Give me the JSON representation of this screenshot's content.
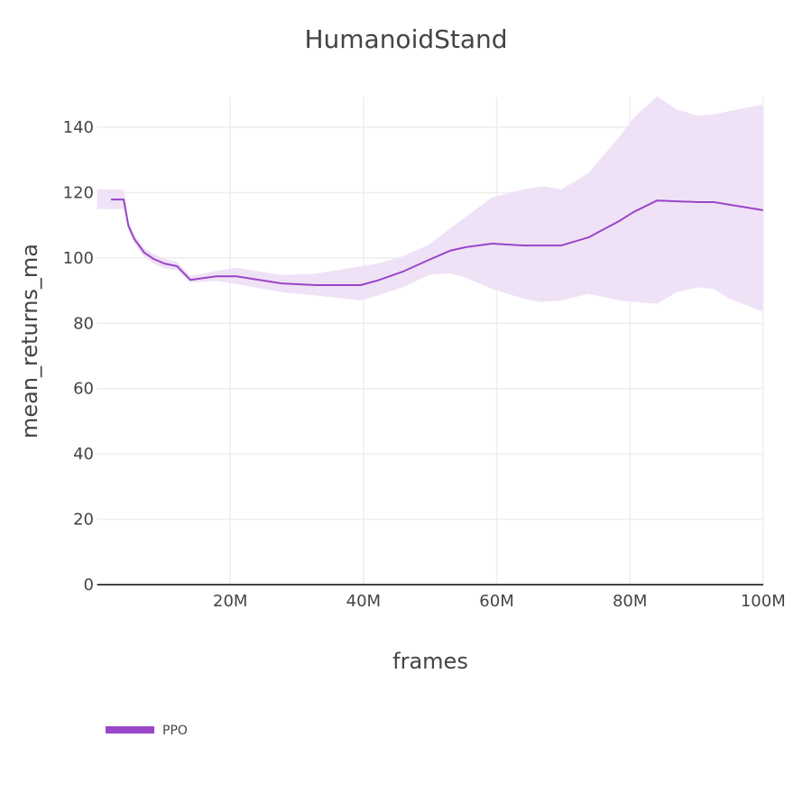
{
  "chart_data": {
    "type": "line",
    "title": "HumanoidStand",
    "xlabel": "frames",
    "ylabel": "mean_returns_ma",
    "xlim": [
      0,
      100000000
    ],
    "ylim": [
      0,
      150
    ],
    "x_ticks": [
      20000000,
      40000000,
      60000000,
      80000000,
      100000000
    ],
    "x_tick_labels": [
      "20M",
      "40M",
      "60M",
      "80M",
      "100M"
    ],
    "y_ticks": [
      0,
      20,
      40,
      60,
      80,
      100,
      120,
      140
    ],
    "y_tick_labels": [
      "0",
      "20",
      "40",
      "60",
      "80",
      "100",
      "120",
      "140"
    ],
    "grid": true,
    "legend_position": "bottom-left",
    "series": [
      {
        "name": "PPO",
        "color": "#9b45c9",
        "band_color": "#efe2f6",
        "x_M": [
          2.1,
          4.0,
          4.7,
          5.6,
          7.1,
          8.5,
          10.1,
          12.0,
          14.0,
          17.9,
          20.9,
          27.7,
          32.8,
          39.6,
          42.1,
          45.9,
          49.8,
          53.0,
          55.3,
          59.3,
          64.1,
          66.8,
          69.7,
          73.8,
          78.4,
          80.6,
          84.1,
          90.2,
          92.6,
          100.0
        ],
        "mean": [
          117.9,
          117.9,
          109.9,
          105.8,
          101.6,
          99.7,
          98.3,
          97.5,
          93.3,
          94.4,
          94.4,
          92.2,
          91.7,
          91.7,
          93.1,
          95.8,
          99.4,
          102.2,
          103.3,
          104.4,
          103.8,
          103.8,
          103.8,
          106.3,
          111.3,
          114.1,
          117.6,
          117.1,
          117.1,
          114.6
        ],
        "band_x_M": [
          0.0,
          4.0,
          4.7,
          5.6,
          7.1,
          8.5,
          10.1,
          12.0,
          14.0,
          17.9,
          20.9,
          27.7,
          32.8,
          39.6,
          42.1,
          45.9,
          49.8,
          53.0,
          55.3,
          59.3,
          64.1,
          66.8,
          69.7,
          73.8,
          78.4,
          80.6,
          84.1,
          87.0,
          90.2,
          92.6,
          95.0,
          100.0
        ],
        "upper": [
          121.0,
          121.0,
          111.5,
          107.0,
          103.0,
          101.2,
          99.8,
          98.8,
          94.5,
          96.0,
          97.0,
          94.8,
          95.2,
          97.5,
          98.3,
          100.5,
          104.0,
          109.0,
          112.5,
          118.5,
          121.0,
          122.0,
          121.0,
          126.0,
          137.0,
          143.0,
          149.5,
          145.5,
          143.5,
          144.0,
          145.0,
          147.0
        ],
        "lower": [
          115.0,
          115.0,
          108.5,
          104.5,
          100.2,
          98.3,
          96.8,
          96.2,
          92.5,
          93.0,
          92.0,
          89.5,
          88.5,
          87.0,
          88.5,
          91.0,
          94.8,
          95.3,
          94.0,
          90.5,
          87.5,
          86.5,
          87.0,
          89.0,
          87.0,
          86.5,
          86.0,
          89.5,
          91.0,
          90.5,
          87.5,
          83.5
        ]
      }
    ]
  },
  "legend": {
    "items": [
      {
        "label": "PPO",
        "color": "#9b45c9"
      }
    ]
  }
}
